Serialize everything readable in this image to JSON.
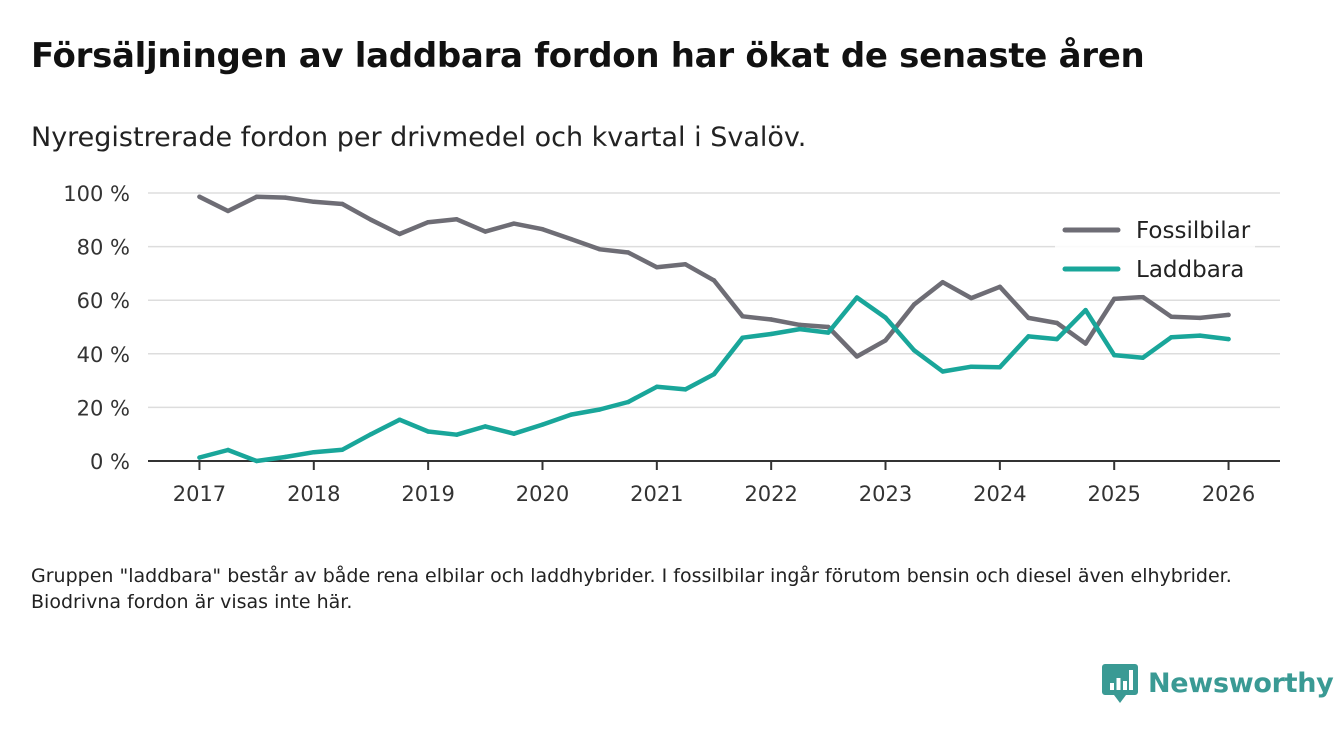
{
  "title": "Försäljningen av laddbara fordon har ökat de senaste åren",
  "subtitle": "Nyregistrerade fordon per drivmedel och kvartal i Svalöv.",
  "footnote": "Gruppen \"laddbara\" består av både rena elbilar och laddhybrider. I fossilbilar ingår förutom bensin och diesel även elhybrider. Biodrivna fordon är visas inte här.",
  "brand": {
    "name": "Newsworthy",
    "icon": "newsworthy-logo-icon",
    "color": "#3a9a94"
  },
  "chart_data": {
    "type": "line",
    "title": "Försäljningen av laddbara fordon har ökat de senaste åren",
    "subtitle": "Nyregistrerade fordon per drivmedel och kvartal i Svalöv.",
    "xlabel": "",
    "ylabel": "",
    "x": [
      2017.0,
      2017.25,
      2017.5,
      2017.75,
      2018.0,
      2018.25,
      2018.5,
      2018.75,
      2019.0,
      2019.25,
      2019.5,
      2019.75,
      2020.0,
      2020.25,
      2020.5,
      2020.75,
      2021.0,
      2021.25,
      2021.5,
      2021.75,
      2022.0,
      2022.25,
      2022.5,
      2022.75,
      2023.0,
      2023.25,
      2023.5,
      2023.75,
      2024.0,
      2024.25,
      2024.5,
      2024.75,
      2025.0,
      2025.25,
      2025.5,
      2025.75,
      2026.0
    ],
    "xlim": [
      2016.55,
      2026.45
    ],
    "xticks": [
      2017,
      2018,
      2019,
      2020,
      2021,
      2022,
      2023,
      2024,
      2025,
      2026
    ],
    "xtick_labels": [
      "2017",
      "2018",
      "2019",
      "2020",
      "2021",
      "2022",
      "2023",
      "2024",
      "2025",
      "2026"
    ],
    "ylim": [
      0,
      100
    ],
    "yticks": [
      0,
      20,
      40,
      60,
      80,
      100
    ],
    "ytick_labels": [
      "0 %",
      "20 %",
      "40 %",
      "60 %",
      "80 %",
      "100 %"
    ],
    "grid": true,
    "legend_position": "top-right",
    "series": [
      {
        "name": "Fossilbilar",
        "color": "#6e6d75",
        "values": [
          98.6,
          93.3,
          98.6,
          98.3,
          96.7,
          95.9,
          90.0,
          84.7,
          89.1,
          90.2,
          85.6,
          88.6,
          86.5,
          82.8,
          79.0,
          77.8,
          72.3,
          73.4,
          67.4,
          54.0,
          52.8,
          50.8,
          50.0,
          39.0,
          45.0,
          58.4,
          66.7,
          60.8,
          65.0,
          53.4,
          51.5,
          43.8,
          60.5,
          61.2,
          53.8,
          53.4,
          54.5
        ]
      },
      {
        "name": "Laddbara",
        "color": "#19a69a",
        "values": [
          1.3,
          4.1,
          0.0,
          1.5,
          3.3,
          4.2,
          10.0,
          15.4,
          11.0,
          9.8,
          12.9,
          10.2,
          13.6,
          17.3,
          19.2,
          22.0,
          27.7,
          26.7,
          32.4,
          46.0,
          47.4,
          49.2,
          47.9,
          61.0,
          53.5,
          41.3,
          33.4,
          35.2,
          35.0,
          46.5,
          45.5,
          56.3,
          39.5,
          38.5,
          46.2,
          46.8,
          45.5
        ]
      }
    ]
  }
}
